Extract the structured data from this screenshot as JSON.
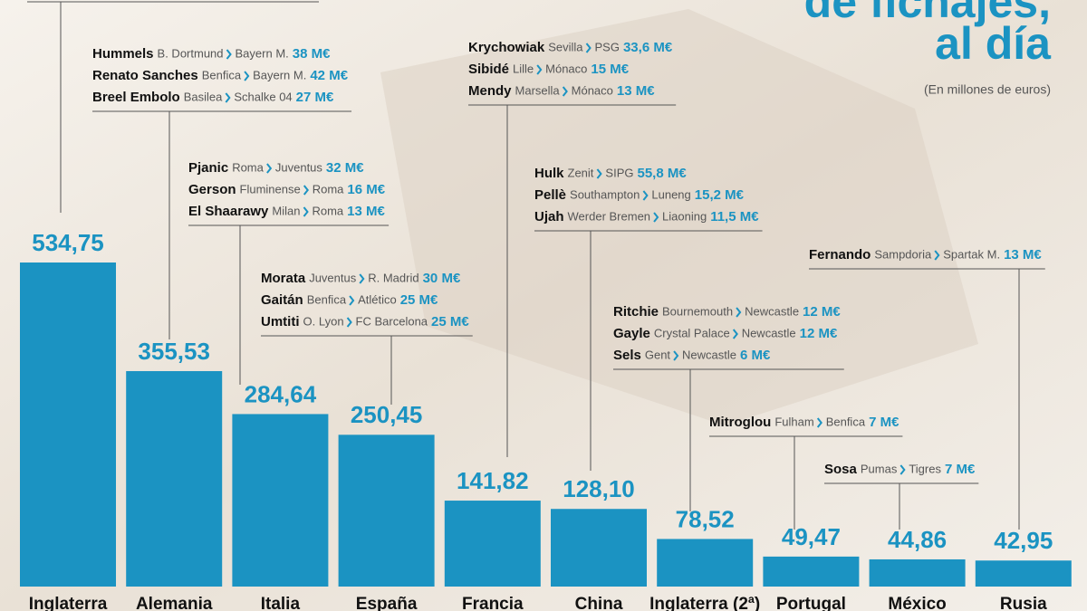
{
  "chart_data": {
    "type": "bar",
    "title": [
      "de fichajes,",
      "al día"
    ],
    "subtitle": "(En millones de euros)",
    "color": "#1b93c2",
    "categories": [
      "Inglaterra",
      "Alemania",
      "Italia",
      "España",
      "Francia",
      "China",
      "Inglaterra (2ª)",
      "Portugal",
      "México",
      "Rusia"
    ],
    "values": [
      534.75,
      355.53,
      284.64,
      250.45,
      141.82,
      128.1,
      78.52,
      49.47,
      44.86,
      42.95
    ],
    "value_labels": [
      "534,75",
      "355,53",
      "284,64",
      "250,45",
      "141,82",
      "128,10",
      "78,52",
      "49,47",
      "44,86",
      "42,95"
    ],
    "annotations": [
      [],
      [
        {
          "player": "Hummels",
          "from": "B. Dortmund",
          "to": "Bayern M.",
          "fee": "38 M€"
        },
        {
          "player": "Renato Sanches",
          "from": "Benfica",
          "to": "Bayern M.",
          "fee": "42 M€"
        },
        {
          "player": "Breel Embolo",
          "from": "Basilea",
          "to": "Schalke 04",
          "fee": "27 M€"
        }
      ],
      [
        {
          "player": "Pjanic",
          "from": "Roma",
          "to": "Juventus",
          "fee": "32 M€"
        },
        {
          "player": "Gerson",
          "from": "Fluminense",
          "to": "Roma",
          "fee": "16 M€"
        },
        {
          "player": "El Shaarawy",
          "from": "Milan",
          "to": "Roma",
          "fee": "13 M€"
        }
      ],
      [
        {
          "player": "Morata",
          "from": "Juventus",
          "to": "R. Madrid",
          "fee": "30 M€"
        },
        {
          "player": "Gaitán",
          "from": "Benfica",
          "to": "Atlético",
          "fee": "25 M€"
        },
        {
          "player": "Umtiti",
          "from": "O. Lyon",
          "to": "FC Barcelona",
          "fee": "25 M€"
        }
      ],
      [
        {
          "player": "Krychowiak",
          "from": "Sevilla",
          "to": "PSG",
          "fee": "33,6 M€"
        },
        {
          "player": "Sibidé",
          "from": "Lille",
          "to": "Mónaco",
          "fee": "15 M€"
        },
        {
          "player": "Mendy",
          "from": "Marsella",
          "to": "Mónaco",
          "fee": "13 M€"
        }
      ],
      [
        {
          "player": "Hulk",
          "from": "Zenit",
          "to": "SIPG",
          "fee": "55,8 M€"
        },
        {
          "player": "Pellè",
          "from": "Southampton",
          "to": "Luneng",
          "fee": "15,2 M€"
        },
        {
          "player": "Ujah",
          "from": "Werder Bremen",
          "to": "Liaoning",
          "fee": "11,5 M€"
        }
      ],
      [
        {
          "player": "Ritchie",
          "from": "Bournemouth",
          "to": "Newcastle",
          "fee": "12 M€"
        },
        {
          "player": "Gayle",
          "from": "Crystal Palace",
          "to": "Newcastle",
          "fee": "12 M€"
        },
        {
          "player": "Sels",
          "from": "Gent",
          "to": "Newcastle",
          "fee": "6 M€"
        }
      ],
      [
        {
          "player": "Mitroglou",
          "from": "Fulham",
          "to": "Benfica",
          "fee": "7 M€"
        }
      ],
      [
        {
          "player": "Sosa",
          "from": "Pumas",
          "to": "Tigres",
          "fee": "7 M€"
        }
      ],
      [
        {
          "player": "Fernando",
          "from": "Sampdoria",
          "to": "Spartak M.",
          "fee": "13 M€"
        }
      ]
    ]
  }
}
